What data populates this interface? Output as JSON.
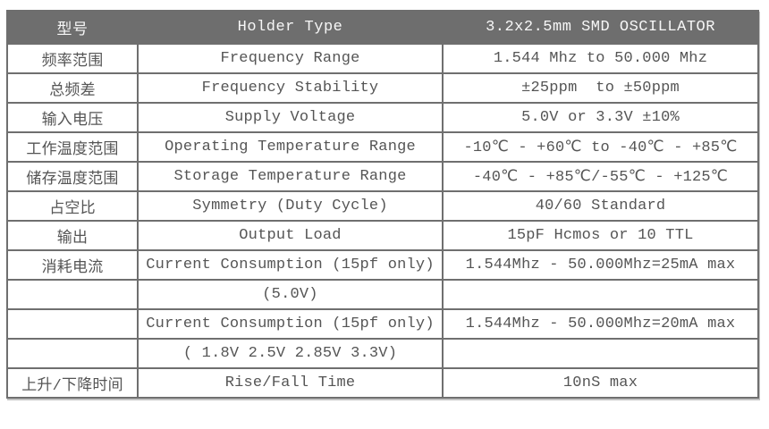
{
  "table": {
    "header": {
      "model_label_cn": "型号",
      "holder_type_label": "Holder Type",
      "product_title": "3.2x2.5mm SMD OSCILLATOR"
    },
    "rows": [
      {
        "cn": "频率范围",
        "en": "Frequency Range",
        "value": "1.544 Mhz to 50.000 Mhz"
      },
      {
        "cn": "总频差",
        "en": "Frequency Stability",
        "value": "±25ppm  to ±50ppm"
      },
      {
        "cn": "输入电压",
        "en": "Supply Voltage",
        "value": "5.0V or 3.3V ±10%"
      },
      {
        "cn": "工作温度范围",
        "en": "Operating Temperature Range",
        "value": "-10℃ - +60℃ to -40℃ - +85℃"
      },
      {
        "cn": "储存温度范围",
        "en": "Storage Temperature Range",
        "value": "-40℃ - +85℃/-55℃ - +125℃"
      },
      {
        "cn": "占空比",
        "en": "Symmetry (Duty Cycle)",
        "value": "40/60 Standard"
      },
      {
        "cn": "输出",
        "en": "Output Load",
        "value": "15pF Hcmos or 10 TTL"
      },
      {
        "cn": "消耗电流",
        "en": "Current Consumption (15pf only)",
        "value": "1.544Mhz - 50.000Mhz=25mA max"
      },
      {
        "cn": "",
        "en": "(5.0V)",
        "value": ""
      },
      {
        "cn": "",
        "en": "Current Consumption (15pf only)",
        "value": "1.544Mhz - 50.000Mhz=20mA max"
      },
      {
        "cn": "",
        "en": "( 1.8V 2.5V 2.85V 3.3V)",
        "value": ""
      },
      {
        "cn": "上升/下降时间",
        "en": "Rise/Fall Time",
        "value": "10nS max"
      }
    ]
  },
  "colors": {
    "header_bg": "#6e6e6e",
    "header_text": "#f7f7f7",
    "body_text": "#555555",
    "border": "#6f6f6f",
    "page_bg": "#ffffff"
  }
}
